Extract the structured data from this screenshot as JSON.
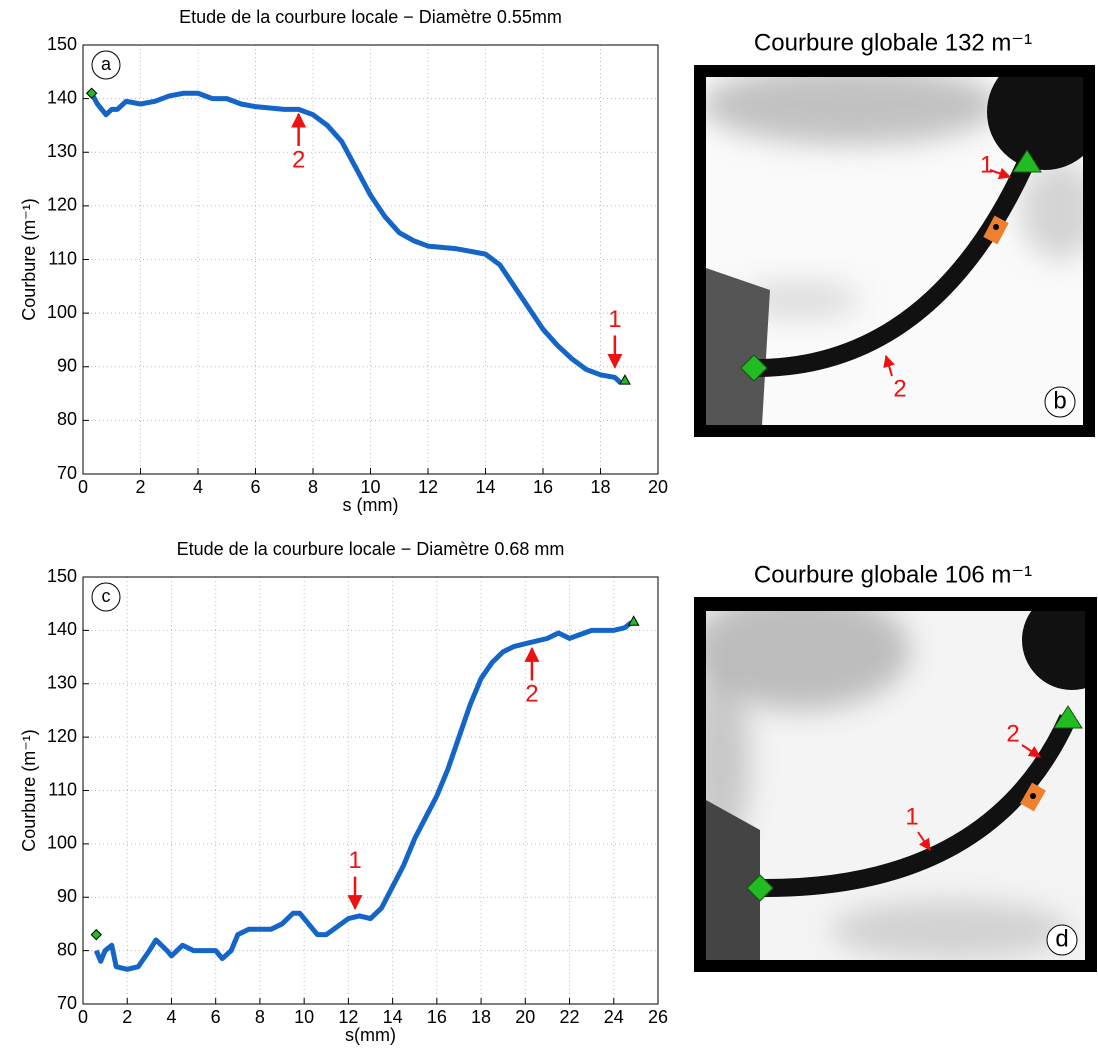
{
  "chart_data": [
    {
      "type": "line",
      "title": "Etude de la courbure locale − Diamètre 0.55mm",
      "xlabel": "s (mm)",
      "ylabel": "Courbure (m⁻¹)",
      "panel_label": "a",
      "x": [
        0.3,
        0.5,
        0.8,
        1.0,
        1.2,
        1.5,
        2.0,
        2.5,
        3.0,
        3.5,
        4.0,
        4.5,
        5.0,
        5.5,
        6.0,
        7.0,
        7.5,
        8.0,
        8.5,
        9.0,
        9.5,
        10.0,
        10.5,
        11.0,
        11.5,
        12.0,
        13.0,
        14.0,
        14.5,
        15.0,
        15.5,
        16.0,
        16.5,
        17.0,
        17.5,
        18.0,
        18.5,
        18.7
      ],
      "values": [
        141,
        139,
        137,
        138,
        138,
        139.5,
        139,
        139.5,
        140.5,
        141,
        141,
        140,
        140,
        139,
        138.5,
        138,
        138,
        137,
        135,
        132,
        127,
        122,
        118,
        115,
        113.5,
        112.5,
        112,
        111,
        109,
        105,
        101,
        97,
        94,
        91.5,
        89.5,
        88.5,
        88,
        87
      ],
      "color": "#1565c8",
      "xlim": [
        0,
        20
      ],
      "ylim": [
        70,
        150
      ],
      "xticks": [
        0,
        2,
        4,
        6,
        8,
        10,
        12,
        14,
        16,
        18,
        20
      ],
      "yticks": [
        70,
        80,
        90,
        100,
        110,
        120,
        130,
        140,
        150
      ],
      "grid": true,
      "markers": [
        {
          "shape": "diamond",
          "x": 0.3,
          "y": 141,
          "color": "#22bb22"
        },
        {
          "shape": "triangle",
          "x": 18.85,
          "y": 87.5,
          "color": "#22bb22"
        }
      ],
      "annotations": [
        {
          "text": "2",
          "x": 7.5,
          "y": 137.5,
          "direction": "up",
          "color": "#ee1111"
        },
        {
          "text": "1",
          "x": 18.5,
          "y": 89.5,
          "direction": "down",
          "color": "#ee1111"
        }
      ]
    },
    {
      "type": "line",
      "title": "Etude de la courbure locale − Diamètre 0.68 mm",
      "xlabel": "s(mm)",
      "ylabel": "Courbure (m⁻¹)",
      "panel_label": "c",
      "x": [
        0.6,
        0.8,
        1.0,
        1.3,
        1.5,
        2.0,
        2.5,
        3.0,
        3.3,
        3.8,
        4.0,
        4.5,
        5.0,
        5.5,
        6.0,
        6.3,
        6.7,
        7.0,
        7.5,
        8.0,
        8.5,
        9.0,
        9.5,
        9.8,
        10.2,
        10.6,
        11.0,
        11.5,
        12.0,
        12.5,
        13.0,
        13.5,
        14.0,
        14.5,
        15.0,
        15.5,
        16.0,
        16.5,
        17.0,
        17.5,
        18.0,
        18.5,
        19.0,
        19.5,
        20.0,
        21.0,
        21.5,
        22.0,
        23.0,
        24.0,
        24.5,
        24.8
      ],
      "values": [
        80,
        78,
        80,
        81,
        77,
        76.5,
        77,
        80,
        82,
        80,
        79,
        81,
        80,
        80,
        80,
        78.5,
        80,
        83,
        84,
        84,
        84,
        85,
        87,
        87,
        85,
        83,
        83,
        84.5,
        86,
        86.5,
        86,
        88,
        92,
        96,
        101,
        105,
        109,
        114,
        120,
        126,
        131,
        134,
        136,
        137,
        137.5,
        138.5,
        139.5,
        138.5,
        140,
        140,
        140.5,
        141.5
      ],
      "color": "#1565c8",
      "xlim": [
        0,
        26
      ],
      "ylim": [
        70,
        150
      ],
      "xticks": [
        0,
        2,
        4,
        6,
        8,
        10,
        12,
        14,
        16,
        18,
        20,
        22,
        24,
        26
      ],
      "yticks": [
        70,
        80,
        90,
        100,
        110,
        120,
        130,
        140,
        150
      ],
      "grid": true,
      "markers": [
        {
          "shape": "diamond",
          "x": 0.6,
          "y": 83,
          "color": "#22bb22"
        },
        {
          "shape": "triangle",
          "x": 24.9,
          "y": 141.7,
          "color": "#22bb22"
        }
      ],
      "annotations": [
        {
          "text": "1",
          "x": 12.3,
          "y": 87.5,
          "direction": "down",
          "color": "#ee1111"
        },
        {
          "text": "2",
          "x": 20.3,
          "y": 137,
          "direction": "up",
          "color": "#ee1111"
        }
      ]
    }
  ],
  "images": [
    {
      "title": "Courbure globale 132 m⁻¹",
      "label_1": "1",
      "label_2": "2",
      "panel_label": "b"
    },
    {
      "title": "Courbure globale 106 m⁻¹",
      "label_1": "1",
      "label_2": "2",
      "panel_label": "d"
    }
  ]
}
